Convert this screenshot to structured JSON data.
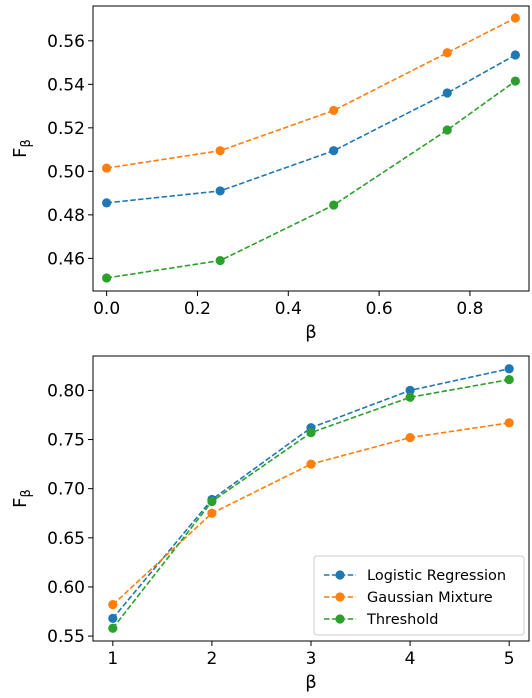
{
  "colors": {
    "Logistic Regression": "#1f77b4",
    "Gaussian Mixture": "#ff7f0e",
    "Threshold": "#2ca02c"
  },
  "chart_data": [
    {
      "type": "line",
      "xlabel": "β",
      "ylabel": "F",
      "ylabel_subscript": "β",
      "xlim": [
        -0.03,
        0.93
      ],
      "ylim": [
        0.445,
        0.576
      ],
      "xticks": [
        0.0,
        0.2,
        0.4,
        0.6,
        0.8
      ],
      "xtick_labels": [
        "0.0",
        "0.2",
        "0.4",
        "0.6",
        "0.8"
      ],
      "yticks": [
        0.46,
        0.48,
        0.5,
        0.52,
        0.54,
        0.56
      ],
      "ytick_labels": [
        "0.46",
        "0.48",
        "0.50",
        "0.52",
        "0.54",
        "0.56"
      ],
      "grid": false,
      "x": [
        0.0,
        0.25,
        0.5,
        0.75,
        0.9
      ],
      "series": [
        {
          "name": "Logistic Regression",
          "values": [
            0.4855,
            0.491,
            0.5095,
            0.536,
            0.5535
          ]
        },
        {
          "name": "Gaussian Mixture",
          "values": [
            0.5015,
            0.5095,
            0.528,
            0.5545,
            0.5705
          ]
        },
        {
          "name": "Threshold",
          "values": [
            0.451,
            0.459,
            0.4845,
            0.519,
            0.5415
          ]
        }
      ]
    },
    {
      "type": "line",
      "xlabel": "β",
      "ylabel": "F",
      "ylabel_subscript": "β",
      "xlim": [
        0.8,
        5.2
      ],
      "ylim": [
        0.545,
        0.835
      ],
      "xticks": [
        1,
        2,
        3,
        4,
        5
      ],
      "xtick_labels": [
        "1",
        "2",
        "3",
        "4",
        "5"
      ],
      "yticks": [
        0.55,
        0.6,
        0.65,
        0.7,
        0.75,
        0.8
      ],
      "ytick_labels": [
        "0.55",
        "0.60",
        "0.65",
        "0.70",
        "0.75",
        "0.80"
      ],
      "grid": false,
      "legend_position": "lower-right",
      "x": [
        1,
        2,
        3,
        4,
        5
      ],
      "series": [
        {
          "name": "Logistic Regression",
          "values": [
            0.568,
            0.689,
            0.762,
            0.8,
            0.822
          ]
        },
        {
          "name": "Gaussian Mixture",
          "values": [
            0.582,
            0.675,
            0.725,
            0.752,
            0.767
          ]
        },
        {
          "name": "Threshold",
          "values": [
            0.558,
            0.687,
            0.757,
            0.793,
            0.811
          ]
        }
      ]
    }
  ]
}
